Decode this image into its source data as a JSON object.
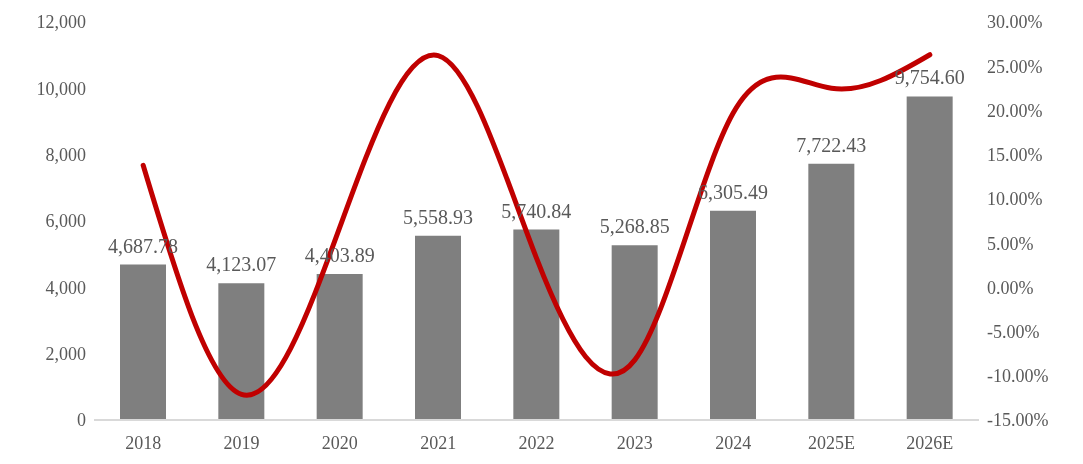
{
  "chart_data": {
    "type": "bar",
    "categories": [
      "2018",
      "2019",
      "2020",
      "2021",
      "2022",
      "2023",
      "2024",
      "2025E",
      "2026E"
    ],
    "series": [
      {
        "color": "#7f7f7f",
        "values": [
          4687.78,
          4123.07,
          4403.89,
          5558.93,
          5740.84,
          5268.85,
          6305.49,
          7722.43,
          9754.6
        ],
        "value_labels": [
          "4,687.78",
          "4,123.07",
          "4,403.89",
          "5,558.93",
          "5,740.84",
          "5,268.85",
          "6,305.49",
          "7,722.43",
          "9,754.60"
        ]
      },
      {
        "type": "line",
        "axis": "y2",
        "color": "#c00000",
        "values": [
          13.8,
          -12.1,
          6.8,
          26.2,
          3.3,
          -8.2,
          19.7,
          22.5,
          26.3
        ]
      }
    ],
    "ylim": [
      0,
      12000
    ],
    "yticks": [
      0,
      {
        "value": 2000,
        "label": "2,000"
      },
      {
        "value": 4000,
        "label": "4,000"
      },
      {
        "value": 6000,
        "label": "6,000"
      },
      {
        "value": 8000,
        "label": "8,000"
      },
      {
        "value": 10000,
        "label": "10,000"
      },
      {
        "value": 12000,
        "label": "12,000"
      }
    ],
    "y2lim": [
      -15,
      30
    ],
    "y2ticks": [
      {
        "value": -15,
        "label": "-15.00%"
      },
      {
        "value": -10,
        "label": "-10.00%"
      },
      {
        "value": -5,
        "label": "-5.00%"
      },
      {
        "value": 0,
        "label": "0.00%"
      },
      {
        "value": 5,
        "label": "5.00%"
      },
      {
        "value": 10,
        "label": "10.00%"
      },
      {
        "value": 15,
        "label": "15.00%"
      },
      {
        "value": 20,
        "label": "20.00%"
      },
      {
        "value": 25,
        "label": "25.00%"
      },
      {
        "value": 30,
        "label": "30.00%"
      }
    ],
    "grid": false,
    "legend": false,
    "marker": "none",
    "line_style": "solid"
  }
}
